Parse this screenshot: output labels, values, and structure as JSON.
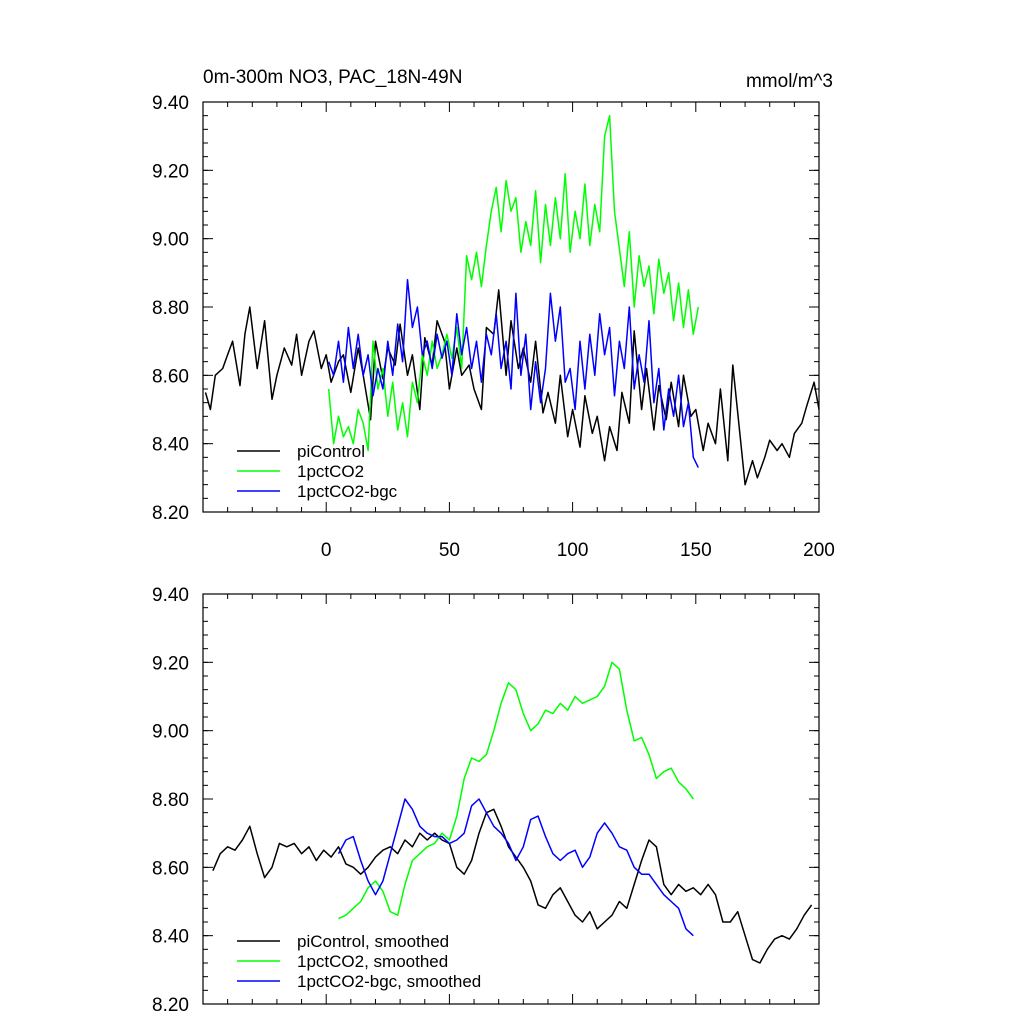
{
  "chart_data": [
    {
      "type": "line",
      "title": "0m-300m NO3, PAC_18N-49N",
      "units": "mmol/m^3",
      "xlabel": "",
      "ylabel": "",
      "xlim": [
        -50,
        200
      ],
      "ylim": [
        8.2,
        9.4
      ],
      "x_ticks": [
        0,
        50,
        100,
        150,
        200
      ],
      "y_ticks": [
        8.2,
        8.4,
        8.6,
        8.8,
        9.0,
        9.2,
        9.4
      ],
      "y_tick_labels": [
        "8.20",
        "8.40",
        "8.60",
        "8.80",
        "9.00",
        "9.20",
        "9.40"
      ],
      "x_tick_labels": [
        "0",
        "50",
        "100",
        "150",
        "200"
      ],
      "legend_position": "bottom-left",
      "series": [
        {
          "name": "piControl",
          "color": "#000000",
          "x": [
            -49,
            -47,
            -45,
            -42,
            -40,
            -38,
            -35,
            -33,
            -31,
            -28,
            -25,
            -22,
            -20,
            -17,
            -14,
            -12,
            -10,
            -7,
            -5,
            -2,
            0,
            2,
            5,
            7,
            10,
            13,
            15,
            18,
            20,
            23,
            25,
            28,
            30,
            33,
            35,
            38,
            40,
            43,
            45,
            48,
            50,
            53,
            55,
            58,
            60,
            63,
            65,
            68,
            70,
            73,
            75,
            78,
            80,
            83,
            85,
            88,
            90,
            93,
            95,
            98,
            100,
            103,
            105,
            108,
            110,
            113,
            115,
            118,
            120,
            123,
            125,
            128,
            130,
            133,
            135,
            138,
            140,
            143,
            145,
            148,
            150,
            153,
            155,
            158,
            160,
            163,
            165,
            168,
            170,
            173,
            175,
            178,
            180,
            183,
            185,
            188,
            190,
            193,
            195,
            198,
            200
          ],
          "values": [
            8.55,
            8.5,
            8.6,
            8.62,
            8.66,
            8.7,
            8.57,
            8.72,
            8.8,
            8.62,
            8.76,
            8.53,
            8.6,
            8.68,
            8.63,
            8.72,
            8.6,
            8.7,
            8.73,
            8.62,
            8.66,
            8.58,
            8.64,
            8.66,
            8.55,
            8.68,
            8.6,
            8.47,
            8.7,
            8.59,
            8.68,
            8.63,
            8.75,
            8.6,
            8.66,
            8.5,
            8.71,
            8.63,
            8.76,
            8.7,
            8.56,
            8.68,
            8.6,
            8.63,
            8.56,
            8.5,
            8.74,
            8.72,
            8.85,
            8.6,
            8.76,
            8.62,
            8.68,
            8.58,
            8.7,
            8.49,
            8.55,
            8.46,
            8.6,
            8.42,
            8.5,
            8.39,
            8.54,
            8.43,
            8.48,
            8.35,
            8.45,
            8.38,
            8.55,
            8.46,
            8.73,
            8.5,
            8.62,
            8.44,
            8.57,
            8.47,
            8.58,
            8.45,
            8.6,
            8.48,
            8.5,
            8.38,
            8.46,
            8.4,
            8.56,
            8.35,
            8.63,
            8.42,
            8.28,
            8.35,
            8.3,
            8.36,
            8.41,
            8.38,
            8.4,
            8.36,
            8.43,
            8.46,
            8.51,
            8.58,
            8.5
          ]
        },
        {
          "name": "1pctCO2",
          "color": "#00ff00",
          "x": [
            1,
            3,
            5,
            7,
            9,
            11,
            13,
            15,
            17,
            19,
            21,
            23,
            25,
            27,
            29,
            31,
            33,
            35,
            37,
            39,
            41,
            43,
            45,
            47,
            49,
            51,
            53,
            55,
            57,
            59,
            61,
            63,
            65,
            67,
            69,
            71,
            73,
            75,
            77,
            79,
            81,
            83,
            85,
            87,
            89,
            91,
            93,
            95,
            97,
            99,
            101,
            103,
            105,
            107,
            109,
            111,
            113,
            115,
            117,
            119,
            121,
            123,
            125,
            127,
            129,
            131,
            133,
            135,
            137,
            139,
            141,
            143,
            145,
            147,
            149,
            151
          ],
          "values": [
            8.56,
            8.4,
            8.48,
            8.42,
            8.45,
            8.4,
            8.5,
            8.46,
            8.38,
            8.7,
            8.56,
            8.62,
            8.48,
            8.58,
            8.44,
            8.52,
            8.42,
            8.58,
            8.52,
            8.66,
            8.6,
            8.7,
            8.62,
            8.66,
            8.72,
            8.65,
            8.74,
            8.62,
            8.95,
            8.88,
            8.96,
            8.86,
            8.98,
            9.08,
            9.15,
            9.02,
            9.17,
            9.08,
            9.12,
            8.96,
            9.05,
            8.98,
            9.14,
            8.93,
            9.1,
            8.98,
            9.12,
            9.0,
            9.19,
            8.96,
            9.08,
            9.0,
            9.16,
            8.98,
            9.1,
            9.02,
            9.3,
            9.36,
            9.08,
            8.97,
            8.86,
            9.02,
            8.8,
            8.95,
            8.86,
            8.92,
            8.78,
            8.94,
            8.84,
            8.9,
            8.76,
            8.87,
            8.74,
            8.85,
            8.72,
            8.8
          ]
        },
        {
          "name": "1pctCO2-bgc",
          "color": "#0000ff",
          "x": [
            1,
            3,
            5,
            7,
            9,
            11,
            13,
            15,
            17,
            19,
            21,
            23,
            25,
            27,
            29,
            31,
            33,
            35,
            37,
            39,
            41,
            43,
            45,
            47,
            49,
            51,
            53,
            55,
            57,
            59,
            61,
            63,
            65,
            67,
            69,
            71,
            73,
            75,
            77,
            79,
            81,
            83,
            85,
            87,
            89,
            91,
            93,
            95,
            97,
            99,
            101,
            103,
            105,
            107,
            109,
            111,
            113,
            115,
            117,
            119,
            121,
            123,
            125,
            127,
            129,
            131,
            133,
            135,
            137,
            139,
            141,
            143,
            145,
            147,
            149,
            151
          ],
          "values": [
            8.64,
            8.6,
            8.7,
            8.58,
            8.74,
            8.62,
            8.72,
            8.6,
            8.66,
            8.54,
            8.62,
            8.56,
            8.7,
            8.6,
            8.75,
            8.64,
            8.88,
            8.74,
            8.8,
            8.66,
            8.7,
            8.62,
            8.72,
            8.65,
            8.7,
            8.6,
            8.78,
            8.66,
            8.74,
            8.62,
            8.7,
            8.58,
            8.72,
            8.66,
            8.78,
            8.62,
            8.7,
            8.56,
            8.84,
            8.6,
            8.72,
            8.5,
            8.64,
            8.52,
            8.62,
            8.84,
            8.7,
            8.8,
            8.58,
            8.62,
            8.5,
            8.7,
            8.56,
            8.72,
            8.6,
            8.78,
            8.66,
            8.74,
            8.54,
            8.7,
            8.62,
            8.8,
            8.56,
            8.66,
            8.58,
            8.76,
            8.52,
            8.62,
            8.44,
            8.56,
            8.48,
            8.6,
            8.45,
            8.52,
            8.36,
            8.33
          ]
        }
      ]
    },
    {
      "type": "line",
      "title": "",
      "xlim": [
        -50,
        200
      ],
      "ylim": [
        8.2,
        9.4
      ],
      "y_ticks": [
        8.2,
        8.4,
        8.6,
        8.8,
        9.0,
        9.2,
        9.4
      ],
      "y_tick_labels": [
        "8.20",
        "8.40",
        "8.60",
        "8.80",
        "9.00",
        "9.20",
        "9.40"
      ],
      "legend_position": "bottom-left",
      "series": [
        {
          "name": "piControl, smoothed",
          "color": "#000000",
          "x": [
            -46,
            -43,
            -40,
            -37,
            -34,
            -31,
            -28,
            -25,
            -22,
            -19,
            -16,
            -13,
            -10,
            -7,
            -4,
            -1,
            2,
            5,
            8,
            11,
            14,
            17,
            20,
            23,
            26,
            29,
            32,
            35,
            38,
            41,
            44,
            47,
            50,
            53,
            56,
            59,
            62,
            65,
            68,
            71,
            74,
            77,
            80,
            83,
            86,
            89,
            92,
            95,
            98,
            101,
            104,
            107,
            110,
            113,
            116,
            119,
            122,
            125,
            128,
            131,
            134,
            137,
            140,
            143,
            146,
            149,
            152,
            155,
            158,
            161,
            164,
            167,
            170,
            173,
            176,
            179,
            182,
            185,
            188,
            191,
            194,
            197
          ],
          "values": [
            8.59,
            8.64,
            8.66,
            8.65,
            8.68,
            8.72,
            8.64,
            8.57,
            8.6,
            8.67,
            8.66,
            8.67,
            8.64,
            8.66,
            8.62,
            8.65,
            8.63,
            8.66,
            8.61,
            8.6,
            8.58,
            8.6,
            8.63,
            8.65,
            8.66,
            8.64,
            8.68,
            8.66,
            8.7,
            8.68,
            8.7,
            8.68,
            8.67,
            8.6,
            8.58,
            8.62,
            8.7,
            8.76,
            8.77,
            8.72,
            8.66,
            8.63,
            8.6,
            8.56,
            8.49,
            8.48,
            8.52,
            8.54,
            8.5,
            8.46,
            8.44,
            8.47,
            8.42,
            8.44,
            8.46,
            8.5,
            8.48,
            8.55,
            8.62,
            8.68,
            8.66,
            8.55,
            8.52,
            8.55,
            8.53,
            8.54,
            8.52,
            8.55,
            8.52,
            8.44,
            8.44,
            8.47,
            8.4,
            8.33,
            8.32,
            8.36,
            8.39,
            8.4,
            8.39,
            8.42,
            8.46,
            8.49
          ]
        },
        {
          "name": "1pctCO2, smoothed",
          "color": "#00ff00",
          "x": [
            5,
            8,
            11,
            14,
            17,
            20,
            23,
            26,
            29,
            32,
            35,
            38,
            41,
            44,
            47,
            50,
            53,
            56,
            59,
            62,
            65,
            68,
            71,
            74,
            77,
            80,
            83,
            86,
            89,
            92,
            95,
            98,
            101,
            104,
            107,
            110,
            113,
            116,
            119,
            122,
            125,
            128,
            131,
            134,
            137,
            140,
            143,
            146,
            149
          ],
          "values": [
            8.45,
            8.46,
            8.48,
            8.5,
            8.54,
            8.56,
            8.53,
            8.47,
            8.46,
            8.55,
            8.62,
            8.64,
            8.66,
            8.67,
            8.7,
            8.68,
            8.75,
            8.86,
            8.92,
            8.91,
            8.93,
            9.0,
            9.08,
            9.14,
            9.12,
            9.05,
            9.0,
            9.02,
            9.06,
            9.05,
            9.08,
            9.06,
            9.1,
            9.08,
            9.09,
            9.1,
            9.13,
            9.2,
            9.18,
            9.06,
            8.97,
            8.98,
            8.93,
            8.86,
            8.88,
            8.89,
            8.85,
            8.83,
            8.8
          ]
        },
        {
          "name": "1pctCO2-bgc, smoothed",
          "color": "#0000ff",
          "x": [
            5,
            8,
            11,
            14,
            17,
            20,
            23,
            26,
            29,
            32,
            35,
            38,
            41,
            44,
            47,
            50,
            53,
            56,
            59,
            62,
            65,
            68,
            71,
            74,
            77,
            80,
            83,
            86,
            89,
            92,
            95,
            98,
            101,
            104,
            107,
            110,
            113,
            116,
            119,
            122,
            125,
            128,
            131,
            134,
            137,
            140,
            143,
            146,
            149
          ],
          "values": [
            8.64,
            8.68,
            8.69,
            8.62,
            8.56,
            8.52,
            8.56,
            8.64,
            8.72,
            8.8,
            8.77,
            8.72,
            8.7,
            8.69,
            8.69,
            8.67,
            8.68,
            8.7,
            8.78,
            8.8,
            8.76,
            8.72,
            8.7,
            8.67,
            8.62,
            8.66,
            8.74,
            8.75,
            8.69,
            8.64,
            8.62,
            8.64,
            8.65,
            8.6,
            8.63,
            8.7,
            8.73,
            8.7,
            8.66,
            8.65,
            8.6,
            8.58,
            8.58,
            8.55,
            8.52,
            8.5,
            8.48,
            8.42,
            8.4
          ]
        }
      ]
    }
  ]
}
